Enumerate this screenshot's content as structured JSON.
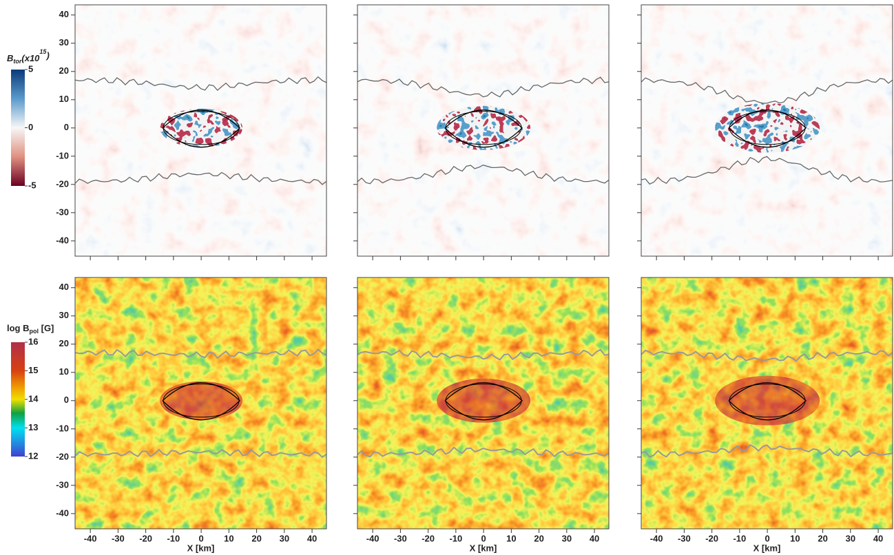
{
  "figure": {
    "x_label": "X [km]",
    "xlim": [
      -45.5,
      45.2
    ],
    "ylim": [
      -45.4,
      43.6
    ],
    "xticks": [
      -40,
      -30,
      -20,
      -10,
      0,
      10,
      20,
      30,
      40
    ],
    "yticks": [
      40,
      30,
      20,
      10,
      0,
      -10,
      -20,
      -30,
      -40
    ],
    "colorbars": [
      {
        "label": {
          "main": "B",
          "sub": "tor",
          "rest": "(x10",
          "sup": "15",
          "end": ")"
        },
        "range": [
          -5,
          5
        ],
        "ticks": [
          5,
          0,
          -5
        ]
      },
      {
        "label": {
          "main": "log B",
          "sub": "pol",
          "rest": " [G]"
        },
        "range": [
          12,
          16
        ],
        "ticks": [
          16,
          15,
          14,
          13,
          12
        ]
      }
    ]
  }
}
